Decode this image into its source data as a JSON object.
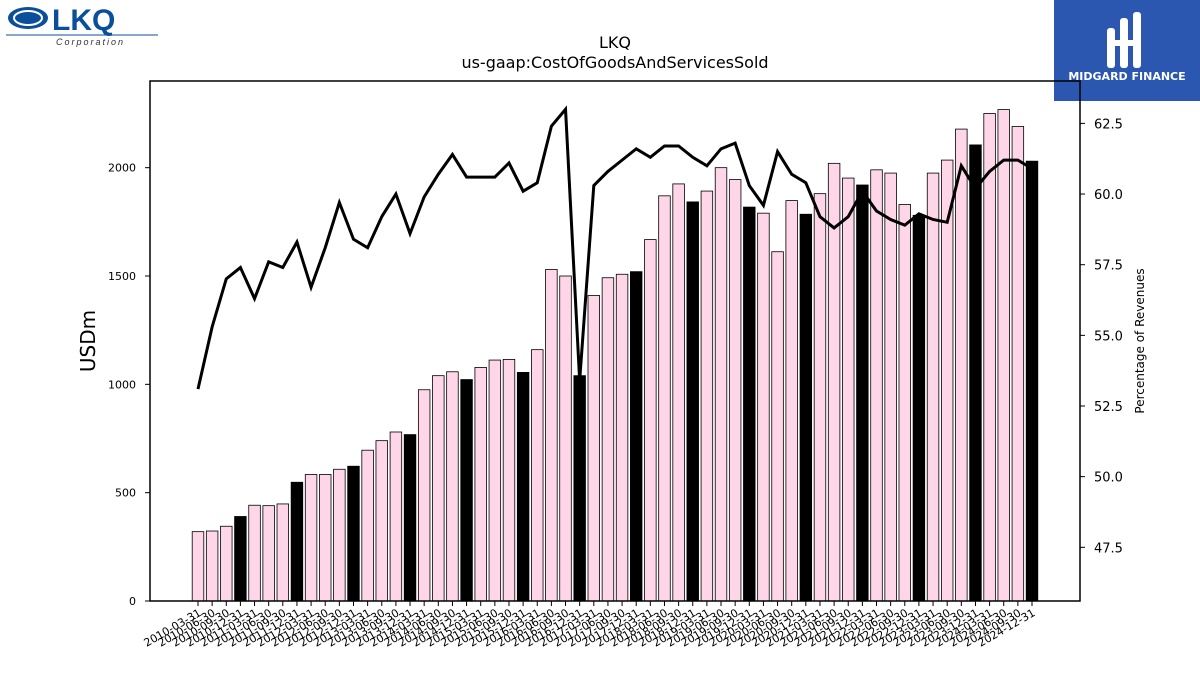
{
  "logos": {
    "lkq_text": "LKQ",
    "lkq_sub": "Corporation",
    "midgard_text": "MIDGARD FINANCE"
  },
  "colors": {
    "bar_light": "#ffd6e8",
    "bar_dark": "#000000",
    "line": "#000000",
    "midgard_bg": "#2b57b0",
    "lkq_blue": "#0b4f9c"
  },
  "chart_data": {
    "type": "bar",
    "title": "LKQ",
    "subtitle": "us-gaap:CostOfGoodsAndServicesSold",
    "ylabel": "USDm",
    "y2label": "Percentage of Revenues",
    "ylim": [
      0,
      2400
    ],
    "y2lim": [
      45.6,
      64.0
    ],
    "yticks": [
      0,
      500,
      1000,
      1500,
      2000
    ],
    "y2ticks": [
      47.5,
      50.0,
      52.5,
      55.0,
      57.5,
      60.0,
      62.5
    ],
    "y2tick_labels": [
      "47.5",
      "50.0",
      "52.5",
      "55.0",
      "57.5",
      "60.0",
      "62.5"
    ],
    "categories": [
      "2010-03-31",
      "2010-06-30",
      "2010-09-30",
      "2010-12-31",
      "2011-03-31",
      "2011-06-30",
      "2011-09-30",
      "2011-12-31",
      "2012-03-31",
      "2012-06-30",
      "2012-09-30",
      "2012-12-31",
      "2013-03-31",
      "2013-06-30",
      "2013-09-30",
      "2013-12-31",
      "2014-03-31",
      "2014-06-30",
      "2014-09-30",
      "2014-12-31",
      "2015-03-31",
      "2015-06-30",
      "2015-09-30",
      "2015-12-31",
      "2016-03-31",
      "2016-06-30",
      "2016-09-30",
      "2016-12-31",
      "2017-03-31",
      "2017-06-30",
      "2017-09-30",
      "2017-12-31",
      "2018-03-31",
      "2018-06-30",
      "2018-09-30",
      "2018-12-31",
      "2019-03-31",
      "2019-06-30",
      "2019-09-30",
      "2019-12-31",
      "2020-03-31",
      "2020-06-30",
      "2020-09-30",
      "2020-12-31",
      "2021-03-31",
      "2021-06-30",
      "2021-09-30",
      "2021-12-31",
      "2022-03-31",
      "2022-06-30",
      "2022-09-30",
      "2022-12-31",
      "2023-03-31",
      "2023-06-30",
      "2023-09-30",
      "2023-12-31",
      "2024-03-31",
      "2024-06-30",
      "2024-09-30",
      "2024-12-31"
    ],
    "series": [
      {
        "values": [
          320,
          323,
          345,
          390,
          442,
          440,
          448,
          548,
          584,
          584,
          608,
          622,
          696,
          740,
          780,
          768,
          975,
          1040,
          1058,
          1022,
          1078,
          1112,
          1115,
          1055,
          1160,
          1530,
          1500,
          1040,
          1410,
          1492,
          1508,
          1520,
          1668,
          1870,
          1925,
          1842,
          1892,
          2000,
          1945,
          1818,
          1790,
          1612,
          1848,
          1785,
          1880,
          2020,
          1952,
          1920,
          1990,
          1975,
          1830,
          1780,
          1975,
          2035,
          2178,
          2105,
          2250,
          2268,
          2190,
          2030
        ],
        "dark": [
          false,
          false,
          false,
          true,
          false,
          false,
          false,
          true,
          false,
          false,
          false,
          true,
          false,
          false,
          false,
          true,
          false,
          false,
          false,
          true,
          false,
          false,
          false,
          true,
          false,
          false,
          false,
          true,
          false,
          false,
          false,
          true,
          false,
          false,
          false,
          true,
          false,
          false,
          false,
          true,
          false,
          false,
          false,
          true,
          false,
          false,
          false,
          true,
          false,
          false,
          false,
          true,
          false,
          false,
          false,
          true,
          false,
          false,
          false,
          true
        ]
      },
      {
        "axis": "right",
        "values": [
          53.1,
          55.3,
          57.0,
          57.4,
          56.3,
          57.6,
          57.4,
          58.3,
          56.7,
          58.1,
          59.7,
          58.4,
          58.1,
          59.2,
          60.0,
          58.6,
          59.9,
          60.7,
          61.4,
          60.6,
          60.6,
          60.6,
          61.1,
          60.1,
          60.4,
          62.4,
          63.0,
          53.4,
          60.3,
          60.8,
          61.2,
          61.6,
          61.3,
          61.7,
          61.7,
          61.3,
          61.0,
          61.6,
          61.8,
          60.3,
          59.6,
          61.5,
          60.7,
          60.4,
          59.2,
          58.8,
          59.2,
          60.1,
          59.4,
          59.1,
          58.9,
          59.3,
          59.1,
          59.0,
          61.0,
          60.2,
          60.8,
          61.2,
          61.2,
          60.9
        ]
      }
    ],
    "grid": false
  }
}
